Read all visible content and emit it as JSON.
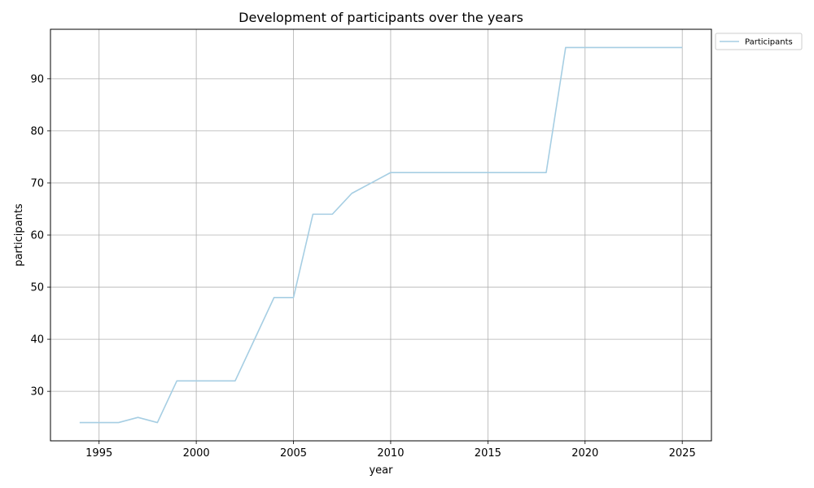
{
  "chart_data": {
    "type": "line",
    "title": "Development of participants over the years",
    "xlabel": "year",
    "ylabel": "participants",
    "xlim": [
      1992.5,
      2026.5
    ],
    "ylim": [
      20.5,
      99.5
    ],
    "xticks": [
      1995,
      2000,
      2005,
      2010,
      2015,
      2020,
      2025
    ],
    "yticks": [
      30,
      40,
      50,
      60,
      70,
      80,
      90
    ],
    "grid": true,
    "legend_position": "outside top-right",
    "colors": {
      "series": "#a6cee3",
      "grid": "#b0b0b0",
      "axes": "#000000"
    },
    "series": [
      {
        "name": "Participants",
        "x": [
          1994,
          1995,
          1996,
          1997,
          1998,
          1999,
          2000,
          2001,
          2002,
          2003,
          2004,
          2005,
          2006,
          2007,
          2008,
          2009,
          2010,
          2011,
          2012,
          2013,
          2014,
          2015,
          2016,
          2017,
          2018,
          2019,
          2020,
          2021,
          2022,
          2023,
          2024,
          2025
        ],
        "y": [
          24,
          24,
          24,
          25,
          24,
          32,
          32,
          32,
          32,
          40,
          48,
          48,
          64,
          64,
          68,
          70,
          72,
          72,
          72,
          72,
          72,
          72,
          72,
          72,
          72,
          96,
          96,
          96,
          96,
          96,
          96,
          96
        ]
      }
    ]
  }
}
